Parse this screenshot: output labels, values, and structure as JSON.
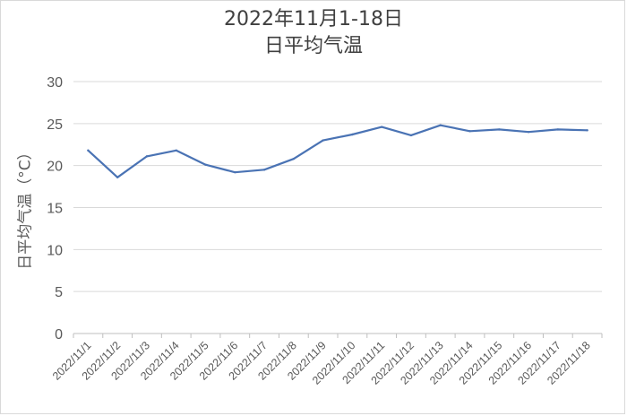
{
  "chart_data": {
    "type": "line",
    "title": "2022年11月1-18日",
    "subtitle": "日平均气温",
    "xlabel": "",
    "ylabel": "日平均气温（°C）",
    "categories": [
      "2022/11/1",
      "2022/11/2",
      "2022/11/3",
      "2022/11/4",
      "2022/11/5",
      "2022/11/6",
      "2022/11/7",
      "2022/11/8",
      "2022/11/9",
      "2022/11/10",
      "2022/11/11",
      "2022/11/12",
      "2022/11/13",
      "2022/11/14",
      "2022/11/15",
      "2022/11/16",
      "2022/11/17",
      "2022/11/18"
    ],
    "series": [
      {
        "values": [
          21.8,
          18.6,
          21.1,
          21.8,
          20.1,
          19.2,
          19.5,
          20.8,
          23.0,
          23.7,
          24.6,
          23.6,
          24.8,
          24.1,
          24.3,
          24.0,
          24.3,
          24.2
        ]
      }
    ],
    "ylim": [
      0,
      30
    ],
    "yticks": [
      "0",
      "5",
      "10",
      "15",
      "20",
      "25",
      "30"
    ],
    "grid": true,
    "legend": "none",
    "line_color": "#4a73b4"
  }
}
